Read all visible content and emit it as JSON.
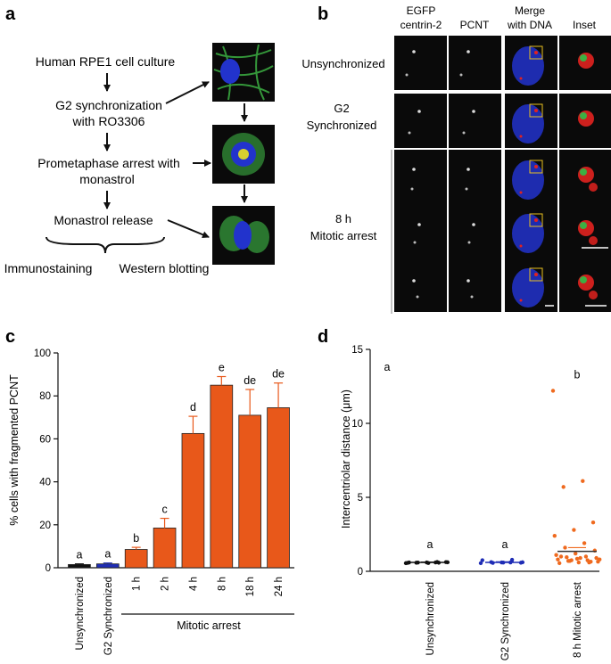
{
  "panel_a": {
    "letter": "a",
    "steps": [
      "Human RPE1 cell culture",
      "G2 synchronization",
      "with RO3306",
      "Prometaphase arrest with",
      "monastrol",
      "Monastrol release"
    ],
    "outputs": [
      "Immunostaining",
      "Western blotting"
    ]
  },
  "panel_b": {
    "letter": "b",
    "columns": [
      {
        "line1": "EGFP",
        "line2": "centrin-2"
      },
      {
        "line1": "",
        "line2": "PCNT"
      },
      {
        "line1": "Merge",
        "line2": "with DNA"
      },
      {
        "line1": "",
        "line2": "Inset"
      }
    ],
    "rows": [
      {
        "line1": "Unsynchronized",
        "line2": ""
      },
      {
        "line1": "G2",
        "line2": "Synchronized"
      },
      {
        "line1": "8 h",
        "line2": "Mitotic arrest"
      }
    ]
  },
  "colors": {
    "black_bar": "#111111",
    "blue_bar": "#1f2db5",
    "orange_bar": "#e8581a",
    "scatter_orange": "#ef6a1f",
    "micro_bg": "#0a0a0a",
    "dna_blue": "#2233cc",
    "tubulin_green": "#3cb043",
    "pcnt_red": "#e2221f"
  },
  "chart_data": [
    {
      "panel": "c",
      "type": "bar",
      "ylabel": "% cells with fragmented PCNT",
      "ylim": [
        0,
        100
      ],
      "yticks": [
        0,
        20,
        40,
        60,
        80,
        100
      ],
      "categories": [
        "Unsynchronized",
        "G2 Synchronized",
        "1 h",
        "2 h",
        "4 h",
        "8 h",
        "18 h",
        "24 h"
      ],
      "values": [
        1.5,
        1.8,
        8.5,
        18.5,
        62.5,
        85,
        71,
        74.5
      ],
      "errors": [
        0.3,
        0.4,
        1,
        4.5,
        8,
        4,
        12,
        11.5
      ],
      "significance": [
        "a",
        "a",
        "b",
        "c",
        "d",
        "e",
        "de",
        "de"
      ],
      "group_label": "Mitotic arrest"
    },
    {
      "panel": "d",
      "type": "scatter",
      "ylabel": "Intercentriolar distance (μm)",
      "ylim": [
        0,
        15
      ],
      "yticks": [
        0,
        5,
        10,
        15
      ],
      "categories": [
        "Unsynchronized",
        "G2 Synchronized",
        "8 h Mitotic arrest"
      ],
      "means": [
        0.6,
        0.6,
        1.35
      ],
      "sem": [
        0.03,
        0.04,
        0.25
      ],
      "significance": [
        "a",
        "a",
        "b"
      ],
      "corner_label": "a",
      "points": [
        [
          0.55,
          0.6,
          0.58,
          0.62,
          0.6,
          0.57,
          0.63,
          0.59,
          0.61,
          0.56,
          0.6,
          0.58
        ],
        [
          0.55,
          0.6,
          0.62,
          0.58,
          0.6,
          0.75,
          0.78,
          0.57,
          0.61,
          0.59
        ],
        [
          12.2,
          6.1,
          5.7,
          3.3,
          2.8,
          2.4,
          1.9,
          1.6,
          1.4,
          1.2,
          1.1,
          1.0,
          0.95,
          0.9,
          0.85,
          0.8,
          0.75,
          0.7,
          0.65,
          0.6,
          0.55,
          0.6,
          0.7,
          0.8,
          0.9,
          1.0,
          0.65,
          0.75
        ]
      ]
    }
  ]
}
